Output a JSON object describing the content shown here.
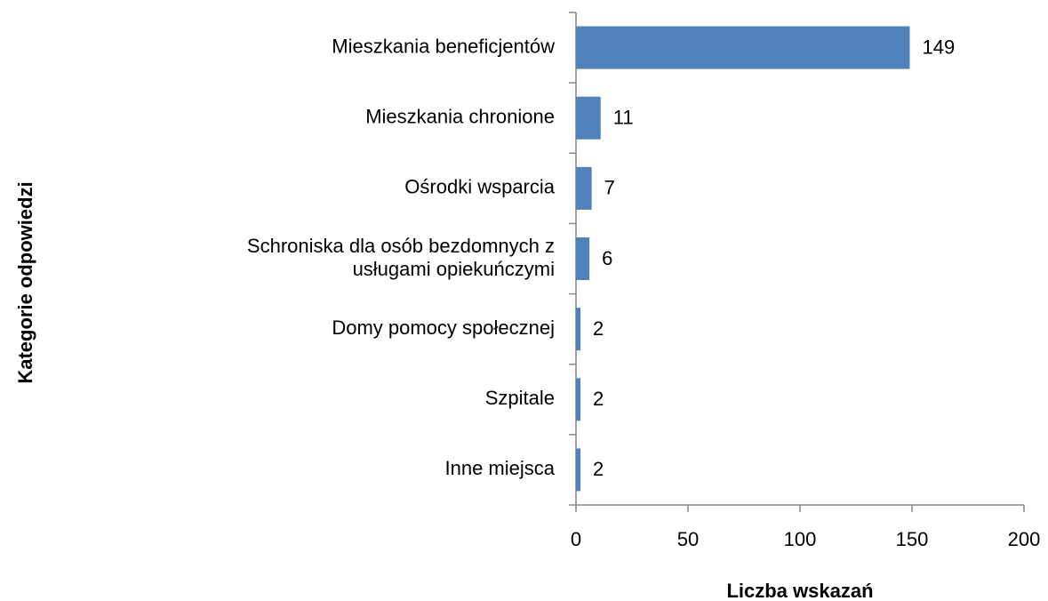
{
  "chart_data": {
    "type": "bar",
    "orientation": "horizontal",
    "categories": [
      "Mieszkania beneficjentów",
      "Mieszkania chronione",
      "Ośrodki wsparcia",
      "Schroniska dla osób bezdomnych z\nusługami opiekuńczymi",
      "Domy pomocy społecznej",
      "Szpitale",
      "Inne miejsca"
    ],
    "values": [
      149,
      11,
      7,
      6,
      2,
      2,
      2
    ],
    "color": "#4f81bd",
    "xlim": [
      0,
      200
    ],
    "xticks": [
      0,
      50,
      100,
      150,
      200
    ],
    "xlabel": "Liczba wskazań",
    "ylabel": "Kategorie odpowiedzi"
  }
}
